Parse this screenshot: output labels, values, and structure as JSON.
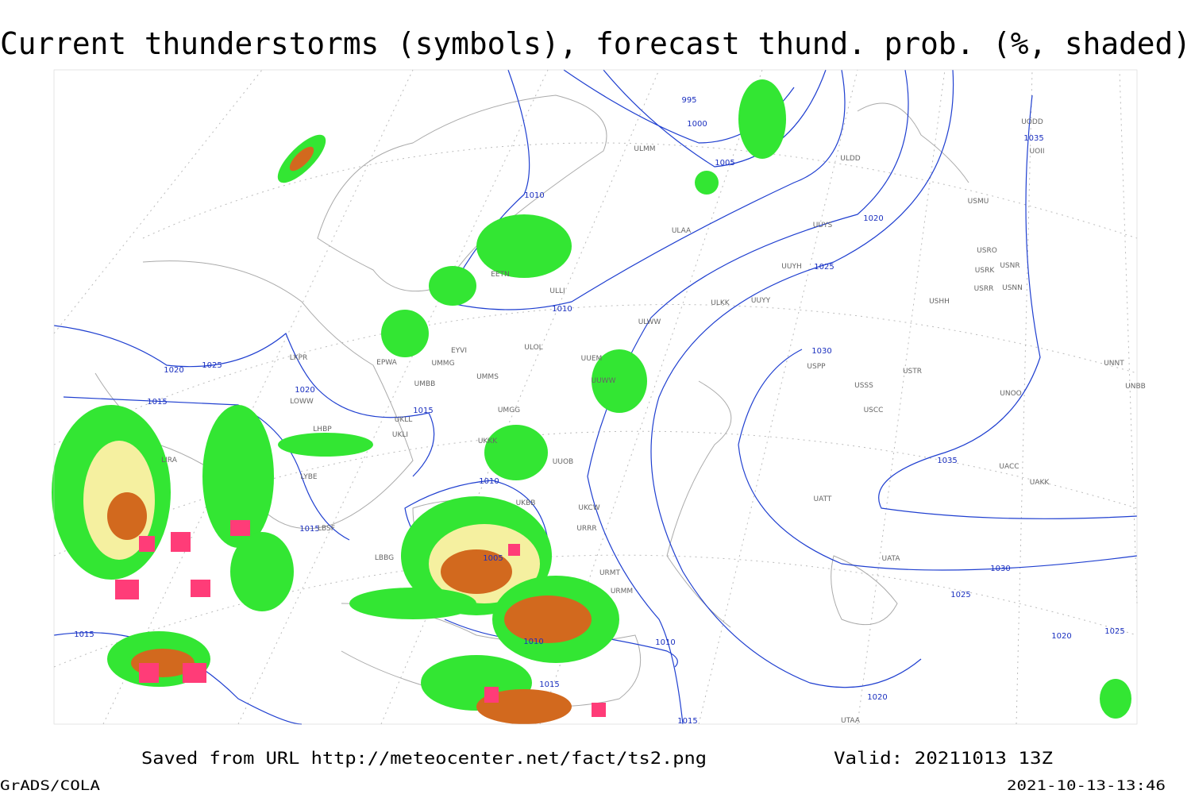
{
  "title": "Current thunderstorms (symbols), forecast thund. prob. (%, shaded)",
  "footer": {
    "saved": "Saved from URL http://meteocenter.net/fact/ts2.png",
    "valid": "Valid: 20211013 13Z",
    "software": "GrADS/COLA",
    "timestamp": "2021-10-13-13:46"
  },
  "isobar_labels": [
    "995",
    "1000",
    "1005",
    "1010",
    "1020",
    "1025",
    "1010",
    "1030",
    "1025",
    "1020",
    "1020",
    "1015",
    "1015",
    "1035",
    "1015",
    "1010",
    "1005",
    "1030",
    "1025",
    "1015",
    "1010",
    "1010",
    "1015",
    "1020",
    "1015",
    "1035",
    "1020",
    "1025"
  ],
  "stations": [
    "ULAA",
    "UUYS",
    "UUYH",
    "ULKK",
    "UUYY",
    "ULWW",
    "ULOL",
    "UUEM",
    "USSS",
    "USTR",
    "USPP",
    "USCC",
    "UNOO",
    "UACC",
    "UAKK",
    "UATT",
    "UATA",
    "UTAA",
    "UMMS",
    "UMGG",
    "UKKK",
    "UUOB",
    "UKBB",
    "UKCW",
    "URRR",
    "UUWW",
    "ULLI",
    "EETN",
    "EPWA",
    "EYVI",
    "UMMG",
    "UMBB",
    "UKLL",
    "UKLI",
    "LKPR",
    "LOWW",
    "LHBP",
    "LYBE",
    "LBSF",
    "LBBG",
    "LIRA",
    "URMT",
    "URMM",
    "ULDD",
    "ULMM",
    "UODD",
    "UOII",
    "USMU",
    "USRO",
    "USRK",
    "USNR",
    "USRR",
    "USNN",
    "USHH",
    "UNNT",
    "UNBB"
  ]
}
